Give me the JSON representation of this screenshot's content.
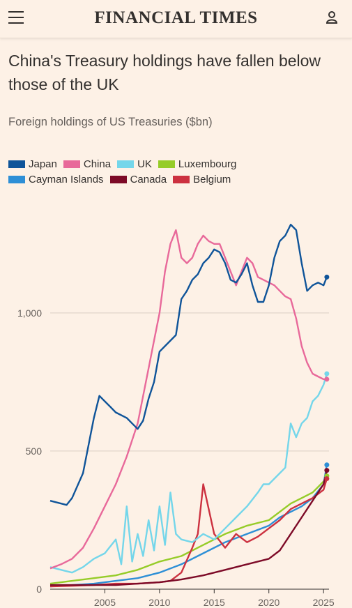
{
  "header": {
    "brand": "FINANCIAL TIMES",
    "menu_icon": "hamburger-menu-icon",
    "user_icon": "user-icon"
  },
  "chart_data": {
    "type": "line",
    "title": "China's Treasury holdings have fallen below those of the UK",
    "subtitle": "Foreign holdings of US Treasuries ($bn)",
    "legend_placement": "top",
    "grid": true,
    "x_ticks": [
      "2005",
      "2010",
      "2015",
      "2020",
      "2025"
    ],
    "y_ticks": [
      "0",
      "500",
      "1,000"
    ],
    "xlim": [
      2000.0,
      2025.5
    ],
    "ylim": [
      0,
      1300
    ],
    "series": [
      {
        "name": "Japan",
        "color": "#0f5499",
        "x": [
          2000.0,
          2001.0,
          2001.5,
          2002.0,
          2003.0,
          2003.5,
          2004.0,
          2004.5,
          2005.0,
          2005.5,
          2006.0,
          2007.0,
          2007.5,
          2008.0,
          2008.5,
          2009.0,
          2009.5,
          2010.0,
          2010.5,
          2011.0,
          2011.5,
          2012.0,
          2012.5,
          2013.0,
          2013.5,
          2014.0,
          2014.5,
          2015.0,
          2015.5,
          2016.0,
          2016.5,
          2017.0,
          2017.5,
          2018.0,
          2018.5,
          2019.0,
          2019.5,
          2020.0,
          2020.5,
          2021.0,
          2021.5,
          2022.0,
          2022.5,
          2023.0,
          2023.5,
          2024.0,
          2024.5,
          2025.0,
          2025.3
        ],
        "y": [
          320,
          310,
          305,
          330,
          420,
          520,
          620,
          700,
          680,
          660,
          640,
          620,
          600,
          580,
          610,
          690,
          750,
          860,
          880,
          900,
          920,
          1050,
          1080,
          1120,
          1140,
          1180,
          1200,
          1230,
          1220,
          1180,
          1120,
          1110,
          1140,
          1180,
          1100,
          1040,
          1040,
          1100,
          1200,
          1260,
          1280,
          1320,
          1300,
          1180,
          1080,
          1100,
          1110,
          1100,
          1130
        ]
      },
      {
        "name": "China",
        "color": "#e8699a",
        "x": [
          2000.0,
          2001.0,
          2002.0,
          2003.0,
          2004.0,
          2005.0,
          2006.0,
          2007.0,
          2008.0,
          2009.0,
          2009.5,
          2010.0,
          2010.5,
          2011.0,
          2011.5,
          2012.0,
          2012.5,
          2013.0,
          2013.5,
          2014.0,
          2014.5,
          2015.0,
          2015.5,
          2016.0,
          2016.5,
          2017.0,
          2017.5,
          2018.0,
          2018.5,
          2019.0,
          2019.5,
          2020.0,
          2020.5,
          2021.0,
          2021.5,
          2022.0,
          2022.5,
          2023.0,
          2023.5,
          2024.0,
          2024.5,
          2025.0,
          2025.3
        ],
        "y": [
          75,
          90,
          110,
          150,
          220,
          300,
          380,
          480,
          600,
          800,
          900,
          1000,
          1150,
          1250,
          1300,
          1200,
          1180,
          1200,
          1250,
          1280,
          1260,
          1250,
          1250,
          1200,
          1150,
          1100,
          1150,
          1200,
          1180,
          1130,
          1120,
          1110,
          1100,
          1080,
          1060,
          1050,
          980,
          880,
          820,
          780,
          770,
          760,
          760
        ]
      },
      {
        "name": "UK",
        "color": "#74d6ea",
        "x": [
          2000.0,
          2001.0,
          2002.0,
          2003.0,
          2004.0,
          2005.0,
          2006.0,
          2006.5,
          2007.0,
          2007.5,
          2008.0,
          2008.5,
          2009.0,
          2009.5,
          2010.0,
          2010.5,
          2011.0,
          2011.5,
          2012.0,
          2013.0,
          2014.0,
          2015.0,
          2016.0,
          2017.0,
          2018.0,
          2019.0,
          2019.5,
          2020.0,
          2020.5,
          2021.0,
          2021.5,
          2022.0,
          2022.5,
          2023.0,
          2023.5,
          2024.0,
          2024.5,
          2025.0,
          2025.3
        ],
        "y": [
          80,
          70,
          60,
          80,
          110,
          130,
          180,
          90,
          300,
          100,
          200,
          120,
          250,
          140,
          300,
          160,
          350,
          200,
          180,
          170,
          200,
          180,
          220,
          260,
          300,
          350,
          380,
          380,
          400,
          420,
          440,
          600,
          550,
          600,
          620,
          680,
          700,
          740,
          780
        ]
      },
      {
        "name": "Luxembourg",
        "color": "#96cc28",
        "x": [
          2000.0,
          2002.0,
          2004.0,
          2006.0,
          2008.0,
          2010.0,
          2012.0,
          2014.0,
          2016.0,
          2018.0,
          2020.0,
          2021.0,
          2022.0,
          2023.0,
          2024.0,
          2025.0,
          2025.3
        ],
        "y": [
          20,
          30,
          40,
          50,
          70,
          100,
          120,
          160,
          200,
          230,
          250,
          280,
          310,
          330,
          350,
          390,
          410
        ]
      },
      {
        "name": "Cayman Islands",
        "color": "#2e8fd6",
        "x": [
          2000.0,
          2002.0,
          2004.0,
          2006.0,
          2008.0,
          2010.0,
          2012.0,
          2014.0,
          2016.0,
          2018.0,
          2020.0,
          2021.0,
          2022.0,
          2023.0,
          2024.0,
          2025.0,
          2025.3
        ],
        "y": [
          10,
          15,
          20,
          30,
          40,
          60,
          90,
          130,
          170,
          200,
          230,
          260,
          280,
          300,
          330,
          380,
          450
        ]
      },
      {
        "name": "Canada",
        "color": "#7d0a27",
        "x": [
          2000.0,
          2002.0,
          2004.0,
          2006.0,
          2008.0,
          2010.0,
          2012.0,
          2014.0,
          2016.0,
          2018.0,
          2020.0,
          2021.0,
          2022.0,
          2023.0,
          2024.0,
          2025.0,
          2025.3
        ],
        "y": [
          15,
          15,
          15,
          15,
          20,
          25,
          35,
          50,
          70,
          90,
          110,
          140,
          200,
          260,
          320,
          380,
          430
        ]
      },
      {
        "name": "Belgium",
        "color": "#cc3140",
        "x": [
          2000.0,
          2002.0,
          2004.0,
          2006.0,
          2008.0,
          2010.0,
          2011.0,
          2012.0,
          2013.0,
          2013.5,
          2014.0,
          2015.0,
          2016.0,
          2017.0,
          2018.0,
          2019.0,
          2020.0,
          2021.0,
          2022.0,
          2023.0,
          2024.0,
          2025.0,
          2025.3
        ],
        "y": [
          10,
          12,
          15,
          20,
          20,
          25,
          30,
          60,
          150,
          200,
          380,
          200,
          150,
          200,
          170,
          190,
          220,
          250,
          290,
          310,
          330,
          360,
          400
        ]
      }
    ]
  }
}
